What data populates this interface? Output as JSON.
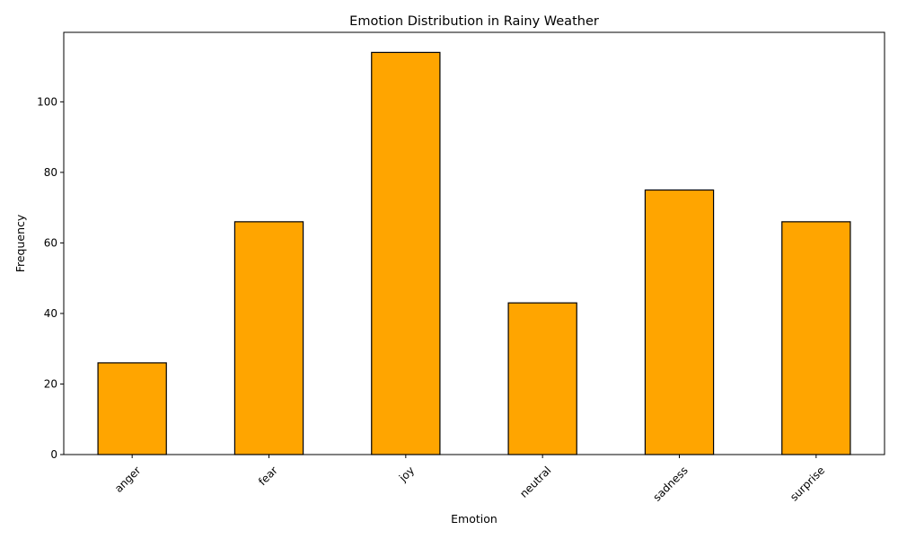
{
  "chart_data": {
    "type": "bar",
    "title": "Emotion Distribution in Rainy Weather",
    "xlabel": "Emotion",
    "ylabel": "Frequency",
    "categories": [
      "anger",
      "fear",
      "joy",
      "neutral",
      "sadness",
      "surprise"
    ],
    "values": [
      26,
      66,
      114,
      43,
      75,
      66
    ],
    "ylim": [
      0,
      119.7
    ],
    "yticks": [
      0,
      20,
      40,
      60,
      80,
      100
    ],
    "x_tick_rotation_deg": 45,
    "grid": false,
    "legend": "none",
    "colors": {
      "bar_fill": "#ffa500",
      "bar_edge": "#000000",
      "axes": "#000000",
      "background": "#ffffff"
    }
  }
}
